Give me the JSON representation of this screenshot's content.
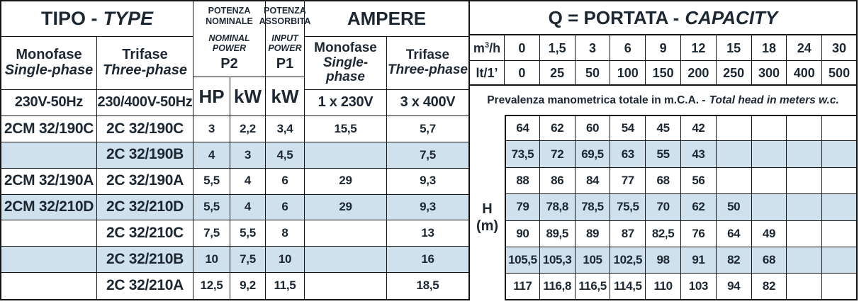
{
  "colors": {
    "row_highlight": "#cfe1ec",
    "text": "#1c2732",
    "line": "#141414"
  },
  "left": {
    "tipo_it": "TIPO -",
    "tipo_en": "TYPE",
    "monofase_it": "Monofase",
    "monofase_en": "Single-phase",
    "monofase_voltage": "230V-50Hz",
    "trifase_it": "Trifase",
    "trifase_en": "Three-phase",
    "trifase_voltage": "230/400V-50Hz",
    "nominal_power": {
      "it1": "POTENZA",
      "it2": "NOMINALE",
      "en1": "NOMINAL",
      "en2": "POWER",
      "symbol": "P2",
      "unit_hp": "HP",
      "unit_kw": "kW"
    },
    "input_power": {
      "it1": "POTENZA",
      "it2": "ASSORBITA",
      "en1": "INPUT",
      "en2": "POWER",
      "symbol": "P1",
      "unit_kw": "kW"
    },
    "ampere": {
      "title": "AMPERE",
      "mono_it": "Monofase",
      "mono_en": "Single-phase",
      "tri_it": "Trifase",
      "tri_en": "Three-phase",
      "mono_voltage": "1 x 230V",
      "tri_voltage": "3 x 400V"
    }
  },
  "capacity": {
    "title_it": "Q = PORTATA -",
    "title_en": "CAPACITY",
    "m3_base": "m",
    "m3_sup": "3",
    "m3_rest": "/h",
    "lt_label": "lt/1’",
    "m3h_values": [
      "0",
      "1,5",
      "3",
      "6",
      "9",
      "12",
      "15",
      "18",
      "24",
      "30"
    ],
    "lt_values": [
      "0",
      "25",
      "50",
      "100",
      "150",
      "200",
      "250",
      "300",
      "400",
      "500"
    ],
    "head_note_it": "Prevalenza manometrica totale in m.C.A. -",
    "head_note_en": "Total head in meters w.c.",
    "h_unit_line1": "H",
    "h_unit_line2": "(m)"
  },
  "rows": [
    {
      "monofase": "2CM 32/190C",
      "trifase": "2C 32/190C",
      "hp": "3",
      "kw2": "2,2",
      "kw1": "3,4",
      "a230": "15,5",
      "a400": "5,7",
      "head": [
        "64",
        "62",
        "60",
        "54",
        "45",
        "42",
        "",
        "",
        "",
        ""
      ]
    },
    {
      "monofase": "",
      "trifase": "2C 32/190B",
      "hp": "4",
      "kw2": "3",
      "kw1": "4,5",
      "a230": "",
      "a400": "7,5",
      "head": [
        "73,5",
        "72",
        "69,5",
        "63",
        "55",
        "43",
        "",
        "",
        "",
        ""
      ]
    },
    {
      "monofase": "2CM 32/190A",
      "trifase": "2C 32/190A",
      "hp": "5,5",
      "kw2": "4",
      "kw1": "6",
      "a230": "29",
      "a400": "9,3",
      "head": [
        "88",
        "86",
        "84",
        "77",
        "68",
        "56",
        "",
        "",
        "",
        ""
      ]
    },
    {
      "monofase": "2CM 32/210D",
      "trifase": "2C 32/210D",
      "hp": "5,5",
      "kw2": "4",
      "kw1": "6",
      "a230": "29",
      "a400": "9,3",
      "head": [
        "79",
        "78,8",
        "78,5",
        "75,5",
        "70",
        "62",
        "50",
        "",
        "",
        ""
      ]
    },
    {
      "monofase": "",
      "trifase": "2C 32/210C",
      "hp": "7,5",
      "kw2": "5,5",
      "kw1": "8",
      "a230": "",
      "a400": "13",
      "head": [
        "90",
        "89,5",
        "89",
        "87",
        "82,5",
        "76",
        "64",
        "49",
        "",
        ""
      ]
    },
    {
      "monofase": "",
      "trifase": "2C 32/210B",
      "hp": "10",
      "kw2": "7,5",
      "kw1": "10",
      "a230": "",
      "a400": "16",
      "head": [
        "105,5",
        "105,3",
        "105",
        "102,5",
        "98",
        "91",
        "82",
        "68",
        "",
        ""
      ]
    },
    {
      "monofase": "",
      "trifase": "2C 32/210A",
      "hp": "12,5",
      "kw2": "9,2",
      "kw1": "11,5",
      "a230": "",
      "a400": "18,5",
      "head": [
        "117",
        "116,8",
        "116,5",
        "114,5",
        "110",
        "103",
        "94",
        "82",
        "",
        ""
      ]
    }
  ]
}
